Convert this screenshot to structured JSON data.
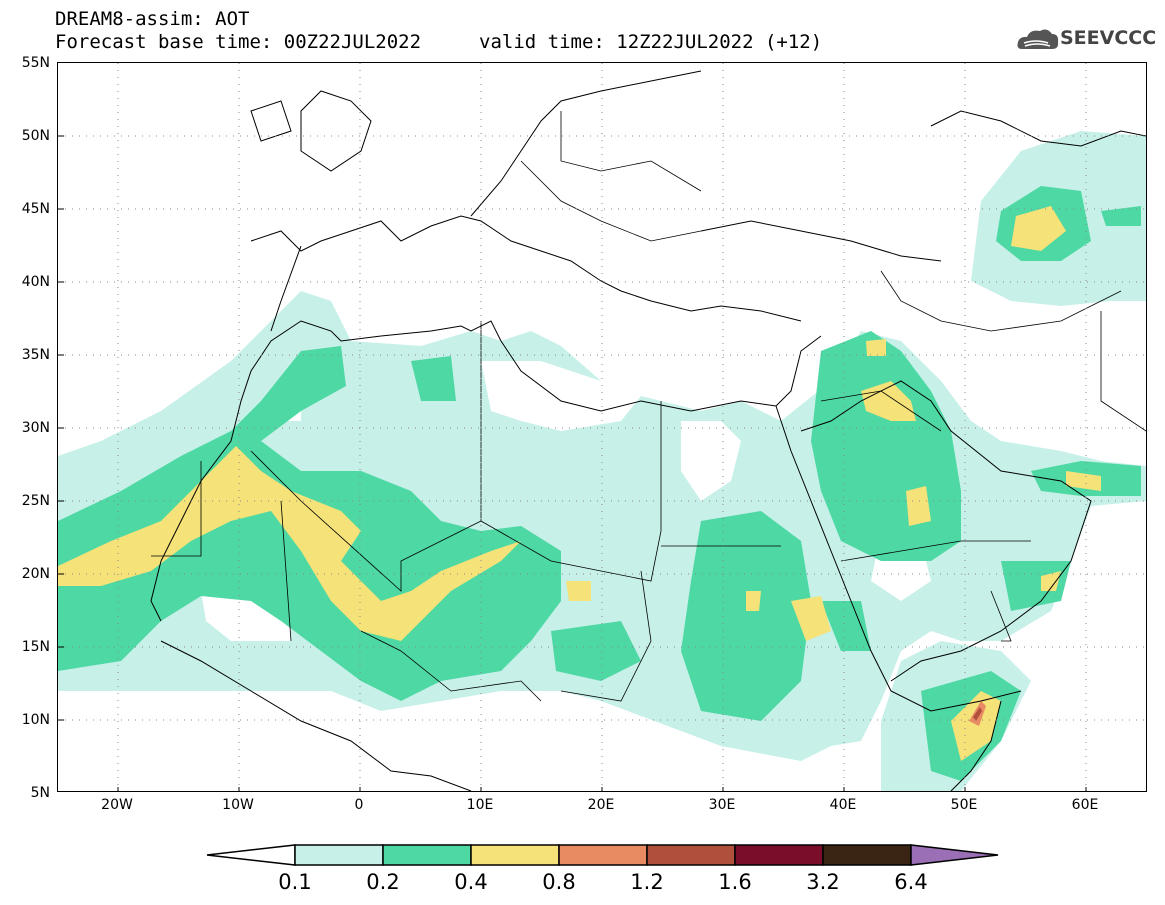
{
  "header": {
    "line1": "DREAM8-assim: AOT",
    "base_time": "Forecast base time: 00Z22JUL2022",
    "valid_time": "valid time: 12Z22JUL2022 (+12)"
  },
  "logo": {
    "text": "SEEVCCC",
    "icon": "cloud-icon"
  },
  "axes": {
    "lat_labels": [
      "55N",
      "50N",
      "45N",
      "40N",
      "35N",
      "30N",
      "25N",
      "20N",
      "15N",
      "10N",
      "5N"
    ],
    "lon_labels": [
      "20W",
      "10W",
      "0",
      "10E",
      "20E",
      "30E",
      "40E",
      "50E",
      "60E"
    ],
    "lat_range": [
      5,
      55
    ],
    "lon_range": [
      -25,
      65
    ],
    "grid": "dotted"
  },
  "colorbar": {
    "labels": [
      "0.1",
      "0.2",
      "0.4",
      "0.8",
      "1.2",
      "1.6",
      "3.2",
      "6.4"
    ],
    "colors": [
      "#ffffff",
      "#c6f0e8",
      "#4ed8a4",
      "#f5e278",
      "#e88a62",
      "#b0503c",
      "#7a0d2a",
      "#3a2414",
      "#9a6fb6"
    ]
  },
  "palette": {
    "level1": "#c6f0e8",
    "level2": "#4ed8a4",
    "level3": "#f5e278",
    "level4": "#e88a62",
    "level5": "#b0503c"
  }
}
